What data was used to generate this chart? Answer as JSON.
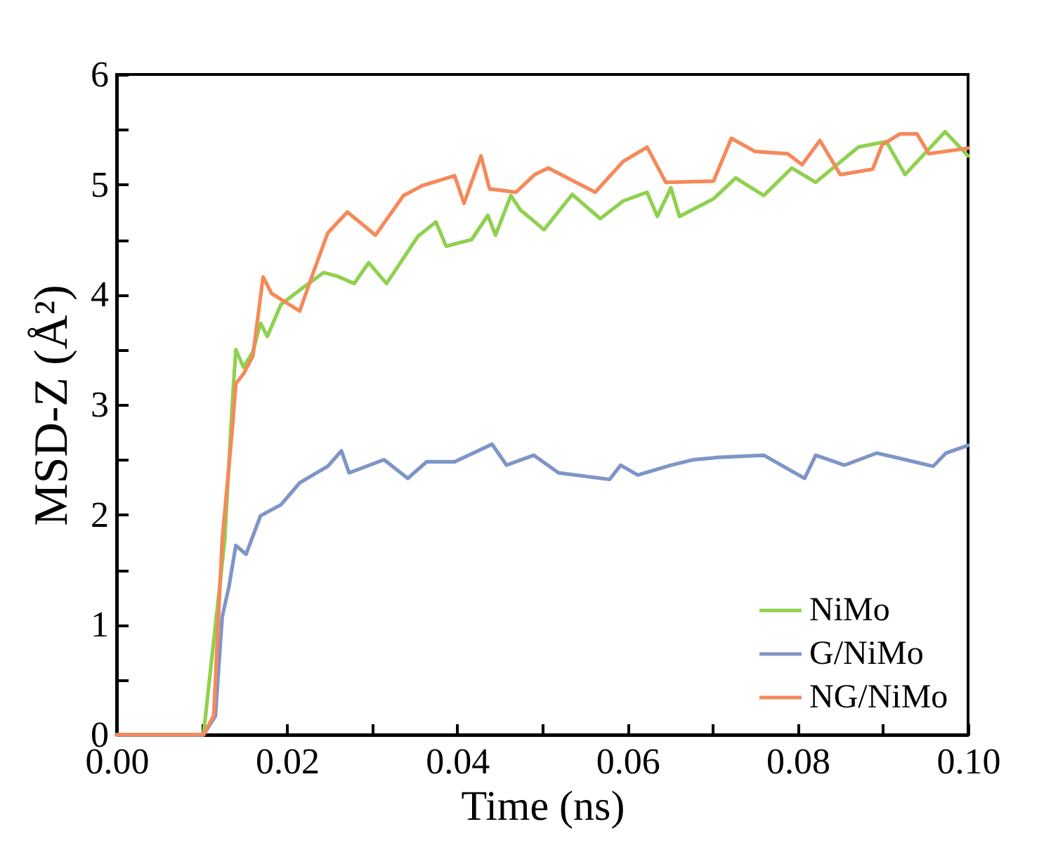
{
  "chart_data": {
    "type": "line",
    "xlabel": "Time (ns)",
    "ylabel": "MSD-Z (Å²)",
    "xlim": [
      0,
      0.1
    ],
    "ylim": [
      0,
      6
    ],
    "xticks": [
      {
        "value": 0,
        "label": "0.00"
      },
      {
        "value": 0.01,
        "label": null
      },
      {
        "value": 0.02,
        "label": "0.02"
      },
      {
        "value": 0.03,
        "label": null
      },
      {
        "value": 0.04,
        "label": "0.04"
      },
      {
        "value": 0.05,
        "label": null
      },
      {
        "value": 0.06,
        "label": "0.06"
      },
      {
        "value": 0.07,
        "label": null
      },
      {
        "value": 0.08,
        "label": "0.08"
      },
      {
        "value": 0.09,
        "label": null
      },
      {
        "value": 0.1,
        "label": "0.10"
      }
    ],
    "yticks": [
      0,
      {
        "value": 0.5,
        "label": null
      },
      1,
      {
        "value": 1.5,
        "label": null
      },
      2,
      {
        "value": 2.5,
        "label": null
      },
      3,
      {
        "value": 3.5,
        "label": null
      },
      4,
      {
        "value": 4.5,
        "label": null
      },
      5,
      {
        "value": 5.5,
        "label": null
      },
      6
    ],
    "grid": false,
    "legend": "bottom right",
    "line_style": "solid",
    "marker": "none",
    "series": [
      {
        "name": "NiMo",
        "color": "#8fd14f",
        "x": [
          0,
          0.0102,
          0.0127,
          0.0136,
          0.014,
          0.0149,
          0.016,
          0.0169,
          0.0177,
          0.0193,
          0.0215,
          0.0243,
          0.0258,
          0.0279,
          0.0296,
          0.0317,
          0.0354,
          0.0375,
          0.0387,
          0.0417,
          0.0436,
          0.0445,
          0.0463,
          0.0474,
          0.0502,
          0.0535,
          0.0568,
          0.0595,
          0.0623,
          0.0635,
          0.0651,
          0.0661,
          0.0701,
          0.0727,
          0.076,
          0.0793,
          0.0821,
          0.0871,
          0.0904,
          0.0926,
          0.0973,
          0.1
        ],
        "values": [
          0,
          0,
          1.77,
          3.03,
          3.5,
          3.34,
          3.48,
          3.74,
          3.62,
          3.91,
          4.04,
          4.2,
          4.17,
          4.1,
          4.29,
          4.1,
          4.53,
          4.66,
          4.44,
          4.5,
          4.72,
          4.54,
          4.9,
          4.77,
          4.59,
          4.91,
          4.69,
          4.85,
          4.93,
          4.71,
          4.97,
          4.71,
          4.87,
          5.06,
          4.9,
          5.15,
          5.02,
          5.34,
          5.39,
          5.09,
          5.48,
          5.26
        ]
      },
      {
        "name": "G/NiMo",
        "color": "#7f95c8",
        "x": [
          0,
          0.0102,
          0.0116,
          0.0124,
          0.0132,
          0.014,
          0.0152,
          0.0169,
          0.0193,
          0.0215,
          0.0248,
          0.0264,
          0.0273,
          0.0314,
          0.0342,
          0.0364,
          0.0397,
          0.0441,
          0.0458,
          0.049,
          0.0519,
          0.0579,
          0.0592,
          0.0612,
          0.0651,
          0.0678,
          0.0706,
          0.076,
          0.0808,
          0.0821,
          0.0855,
          0.0893,
          0.0959,
          0.0974,
          0.1
        ],
        "values": [
          0,
          0,
          0.17,
          1.07,
          1.35,
          1.72,
          1.64,
          1.99,
          2.09,
          2.29,
          2.44,
          2.58,
          2.38,
          2.5,
          2.33,
          2.48,
          2.48,
          2.64,
          2.45,
          2.54,
          2.38,
          2.32,
          2.45,
          2.36,
          2.45,
          2.5,
          2.52,
          2.54,
          2.33,
          2.54,
          2.45,
          2.56,
          2.44,
          2.56,
          2.63
        ]
      },
      {
        "name": "NG/NiMo",
        "color": "#f5895a",
        "x": [
          0,
          0.0102,
          0.0114,
          0.0124,
          0.0136,
          0.014,
          0.0149,
          0.016,
          0.0172,
          0.0182,
          0.0215,
          0.0231,
          0.0248,
          0.0271,
          0.0304,
          0.0337,
          0.0359,
          0.0397,
          0.0408,
          0.0428,
          0.0438,
          0.0469,
          0.0491,
          0.0507,
          0.0562,
          0.0595,
          0.0623,
          0.0645,
          0.0701,
          0.0722,
          0.075,
          0.0788,
          0.0805,
          0.0826,
          0.085,
          0.0888,
          0.0899,
          0.092,
          0.094,
          0.0954,
          0.1
        ],
        "values": [
          0,
          0,
          0.17,
          1.77,
          2.79,
          3.19,
          3.28,
          3.44,
          4.16,
          4.01,
          3.85,
          4.2,
          4.56,
          4.75,
          4.54,
          4.9,
          4.99,
          5.08,
          4.83,
          5.26,
          4.96,
          4.93,
          5.09,
          5.15,
          4.93,
          5.21,
          5.34,
          5.02,
          5.03,
          5.42,
          5.3,
          5.28,
          5.18,
          5.4,
          5.09,
          5.14,
          5.36,
          5.46,
          5.46,
          5.28,
          5.33
        ]
      }
    ]
  }
}
